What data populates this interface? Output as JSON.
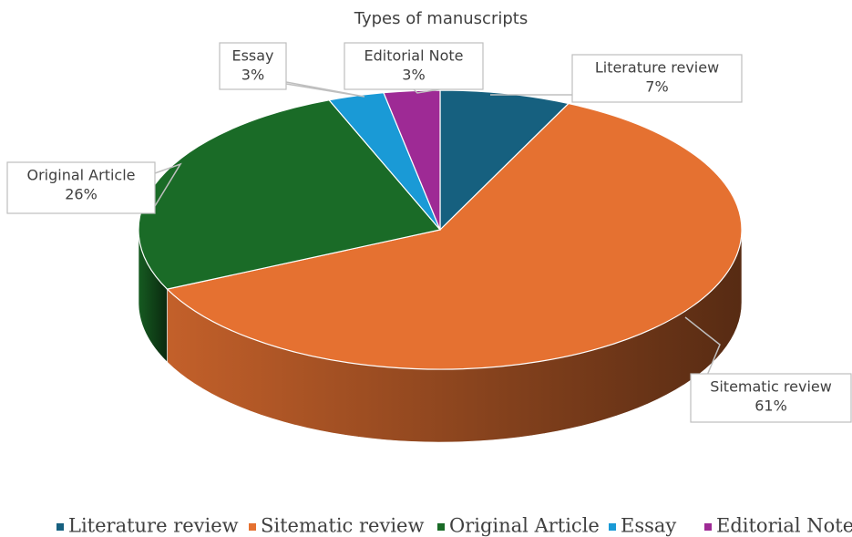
{
  "chart_data": {
    "type": "pie3d",
    "title": "Types of manuscripts",
    "categories": [
      "Literature review",
      "Sitematic review",
      "Original Article",
      "Essay",
      "Editorial Note"
    ],
    "values": [
      7,
      61,
      26,
      3,
      3
    ],
    "value_labels": [
      "7%",
      "61%",
      "26%",
      "3%",
      "3%"
    ],
    "colors": [
      "#16607f",
      "#e57131",
      "#1a6b27",
      "#1a9ad6",
      "#9e2a95"
    ],
    "legend": "bottom"
  }
}
